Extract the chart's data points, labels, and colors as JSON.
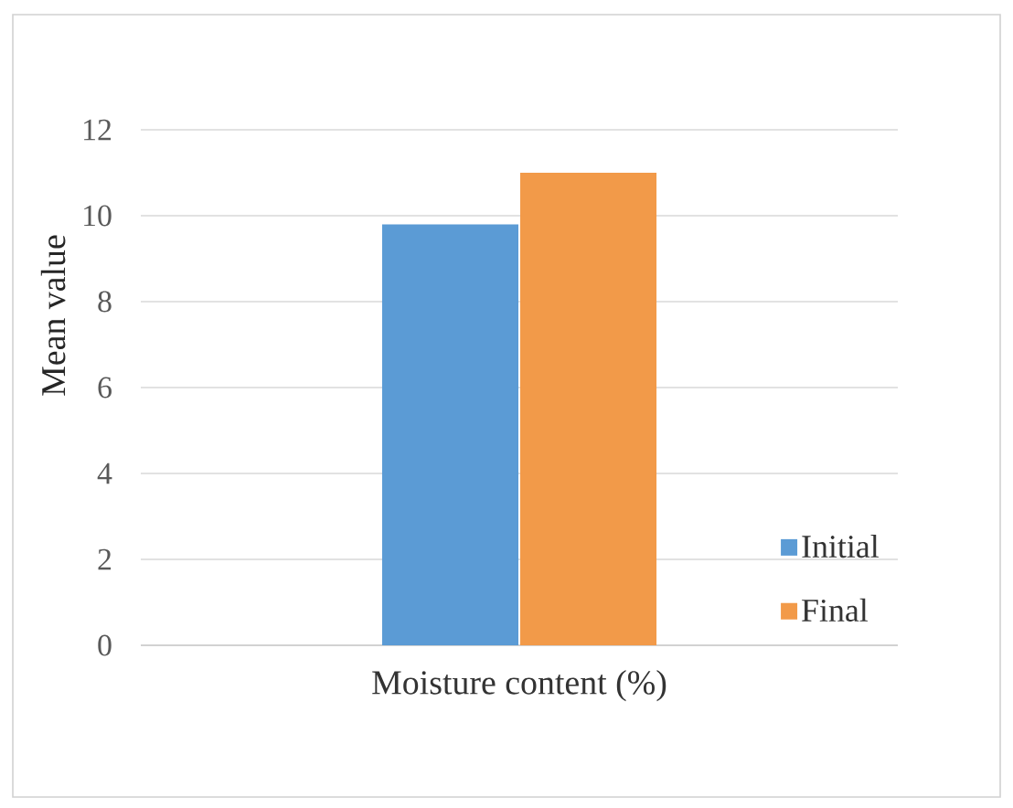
{
  "chart_data": {
    "type": "bar",
    "categories": [
      "Moisture content (%)"
    ],
    "ylabel": "Mean value",
    "series": [
      {
        "name": "Initial",
        "color": "#5b9bd5",
        "values": [
          9.8
        ]
      },
      {
        "name": "Final",
        "color": "#f29a49",
        "values": [
          11.0
        ]
      }
    ],
    "ylim": [
      0,
      12
    ],
    "yticks": [
      0,
      2,
      4,
      6,
      8,
      10,
      12
    ],
    "grid": "y",
    "legend": "bottom right"
  }
}
